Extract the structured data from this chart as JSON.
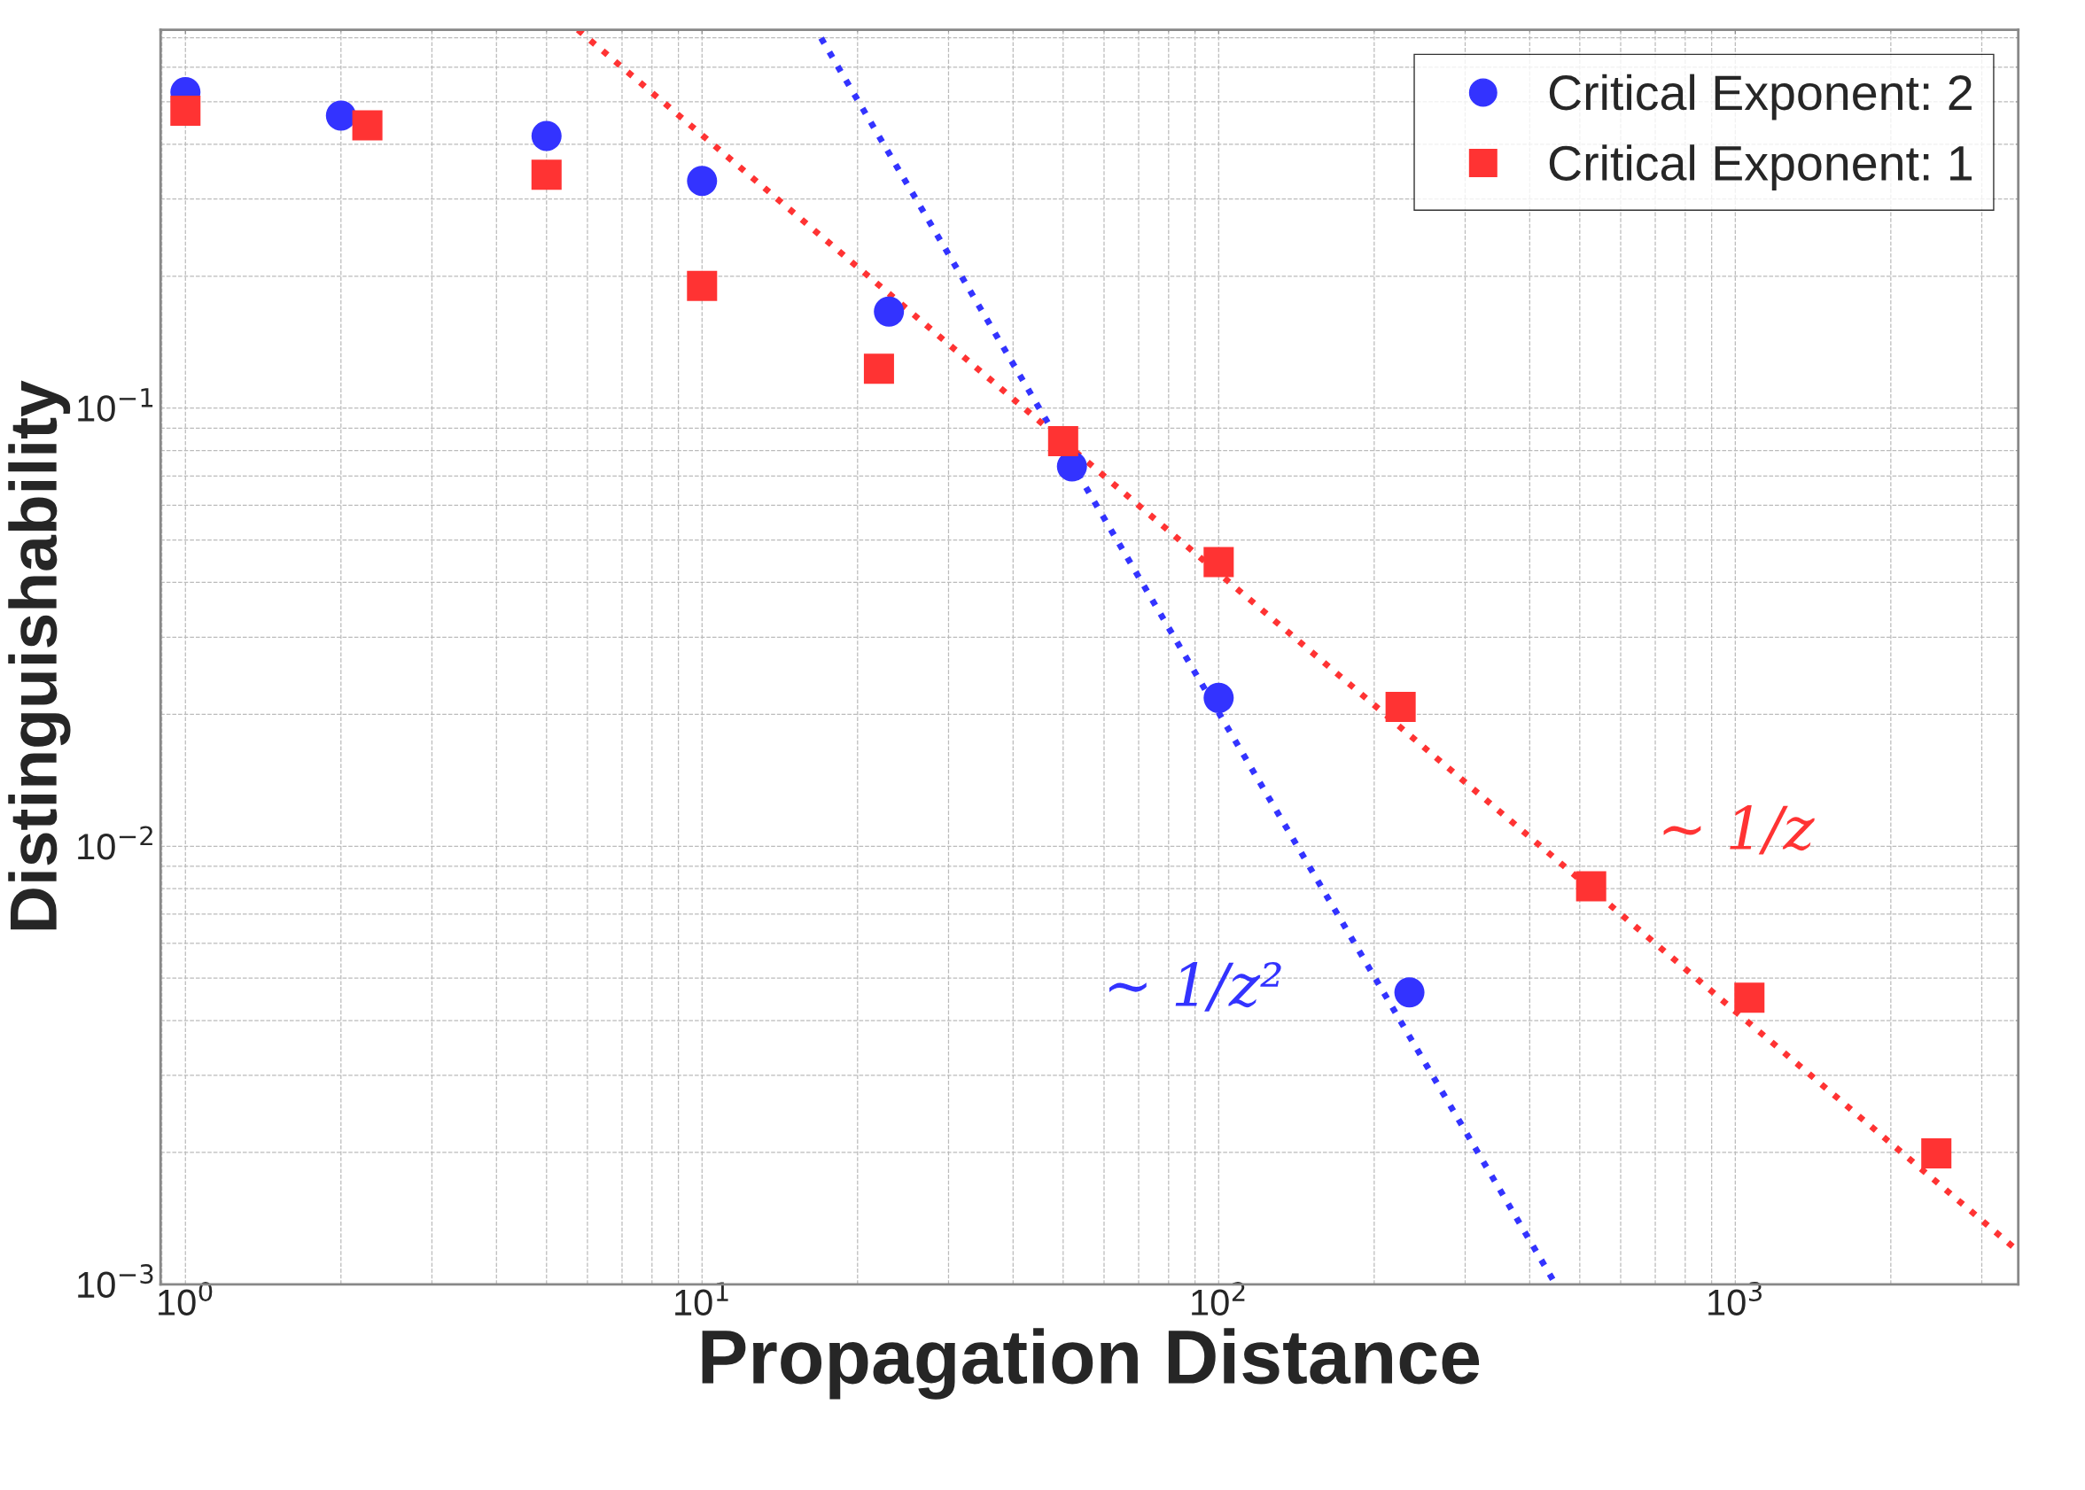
{
  "chart_data": {
    "type": "scatter",
    "xlabel": "Propagation Distance",
    "ylabel": "Distinguishability",
    "log": "xy",
    "grid": true,
    "legend": "top right",
    "xlim": [
      0.895,
      3530
    ],
    "ylim": [
      0.001,
      0.73
    ],
    "xticks": [
      {
        "value": 1,
        "label": "10$^{0}$"
      },
      {
        "value": 10,
        "label": "10$^{1}$"
      },
      {
        "value": 100,
        "label": "10$^{2}$"
      },
      {
        "value": 1000,
        "label": "10$^{3}$"
      }
    ],
    "yticks": [
      {
        "value": 0.001,
        "label": "10$^{−3}$"
      },
      {
        "value": 0.01,
        "label": "10$^{−2}$"
      },
      {
        "value": 0.1,
        "label": "10$^{−1}$"
      }
    ],
    "series": [
      {
        "name": "Critical Exponent: 2",
        "color": "#3333ff",
        "marker": "circle",
        "x": [
          1,
          2,
          5,
          10,
          23,
          52,
          100,
          234
        ],
        "values": [
          0.526,
          0.465,
          0.418,
          0.33,
          0.166,
          0.0736,
          0.0218,
          0.00464
        ]
      },
      {
        "name": "Critical Exponent: 1",
        "color": "#ff3333",
        "marker": "square",
        "x": [
          1,
          2.25,
          5,
          10,
          22,
          50,
          100,
          225,
          526,
          1065,
          2450
        ],
        "values": [
          0.477,
          0.442,
          0.341,
          0.19,
          0.123,
          0.084,
          0.0445,
          0.0208,
          0.0081,
          0.00451,
          0.00199
        ]
      },
      {
        "type": "line",
        "color": "#3333ff",
        "marker": "none",
        "line_style": "dotted",
        "x": [
          17,
          449
        ],
        "values": [
          0.699,
          0.001
        ]
      },
      {
        "type": "line",
        "color": "#ff3333",
        "marker": "none",
        "line_style": "dotted",
        "x": [
          5.75,
          3530
        ],
        "values": [
          0.73,
          0.00119
        ]
      }
    ],
    "annotations": [
      "∼ 1/z²",
      "∼ 1/z"
    ]
  }
}
